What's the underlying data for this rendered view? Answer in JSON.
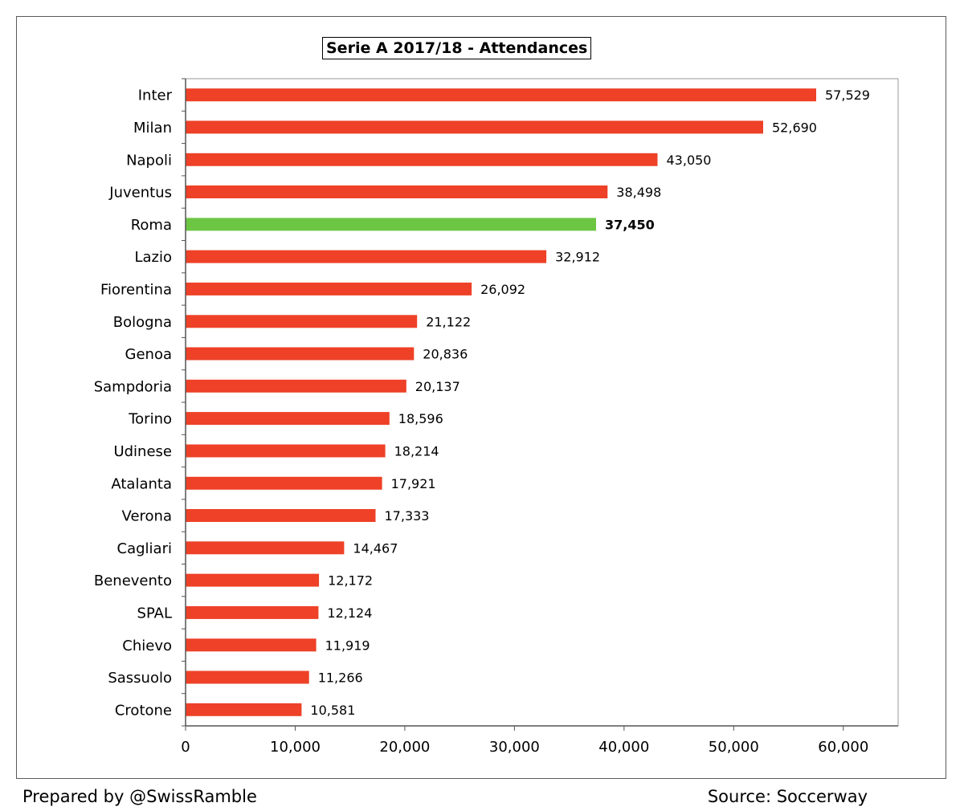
{
  "chart_data": {
    "type": "bar",
    "orientation": "horizontal",
    "title": "Serie A 2017/18 - Attendances",
    "categories": [
      "Inter",
      "Milan",
      "Napoli",
      "Juventus",
      "Roma",
      "Lazio",
      "Fiorentina",
      "Bologna",
      "Genoa",
      "Sampdoria",
      "Torino",
      "Udinese",
      "Atalanta",
      "Verona",
      "Cagliari",
      "Benevento",
      "SPAL",
      "Chievo",
      "Sassuolo",
      "Crotone"
    ],
    "values": [
      57529,
      52690,
      43050,
      38498,
      37450,
      32912,
      26092,
      21122,
      20836,
      20137,
      18596,
      18214,
      17921,
      17333,
      14467,
      12172,
      12124,
      11919,
      11266,
      10581
    ],
    "value_labels": [
      "57,529",
      "52,690",
      "43,050",
      "38,498",
      "37,450",
      "32,912",
      "26,092",
      "21,122",
      "20,836",
      "20,137",
      "18,596",
      "18,214",
      "17,921",
      "17,333",
      "14,467",
      "12,172",
      "12,124",
      "11,919",
      "11,266",
      "10,581"
    ],
    "highlight": "Roma",
    "xlim": [
      0,
      65000
    ],
    "xticks": [
      0,
      10000,
      20000,
      30000,
      40000,
      50000,
      60000
    ],
    "xtick_labels": [
      "0",
      "10,000",
      "20,000",
      "30,000",
      "40,000",
      "50,000",
      "60,000"
    ],
    "colors": {
      "bar": "#ee4127",
      "highlight": "#6cc644"
    },
    "grid": false,
    "xlabel": "",
    "ylabel": ""
  },
  "footer": {
    "prepared_by": "Prepared by @SwissRamble",
    "source": "Source: Soccerway"
  }
}
